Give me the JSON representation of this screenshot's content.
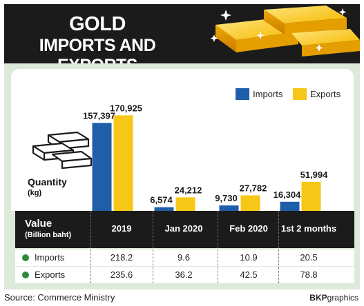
{
  "header": {
    "title_line1": "GOLD",
    "title_line2": "IMPORTS AND EXPORTS"
  },
  "colors": {
    "imports": "#1f5ea8",
    "exports": "#f6c717",
    "header_bg": "#1b1b1b",
    "panel_bg": "#dde9d9",
    "dot": "#2e8b3a"
  },
  "legend": {
    "imports": "Imports",
    "exports": "Exports"
  },
  "quantity_label": {
    "title": "Quantity",
    "unit": "(kg)"
  },
  "chart_data": {
    "type": "bar",
    "categories": [
      "2019",
      "Jan 2020",
      "Feb 2020",
      "1st 2 months"
    ],
    "series": [
      {
        "name": "Imports",
        "values": [
          157397,
          6574,
          9730,
          16304
        ],
        "labels": [
          "157,397",
          "6,574",
          "9,730",
          "16,304"
        ]
      },
      {
        "name": "Exports",
        "values": [
          170925,
          24212,
          27782,
          51994
        ],
        "labels": [
          "170,925",
          "24,212",
          "27,782",
          "51,994"
        ]
      }
    ],
    "title": "GOLD IMPORTS AND EXPORTS",
    "ylabel": "Quantity (kg)",
    "xlabel": "",
    "ylim": [
      0,
      180000
    ],
    "legend": "top-right",
    "grid": false
  },
  "table": {
    "header_title": "Value",
    "header_unit": "(Billion baht)",
    "columns": [
      "2019",
      "Jan 2020",
      "Feb 2020",
      "1st 2 months"
    ],
    "rows": [
      {
        "label": "Imports",
        "values": [
          "218.2",
          "9.6",
          "10.9",
          "20.5"
        ]
      },
      {
        "label": "Exports",
        "values": [
          "235.6",
          "36.2",
          "42.5",
          "78.8"
        ]
      }
    ]
  },
  "footer": {
    "source": "Source: Commerce Ministry",
    "credit_bold": "BKP",
    "credit_rest": "graphics"
  }
}
